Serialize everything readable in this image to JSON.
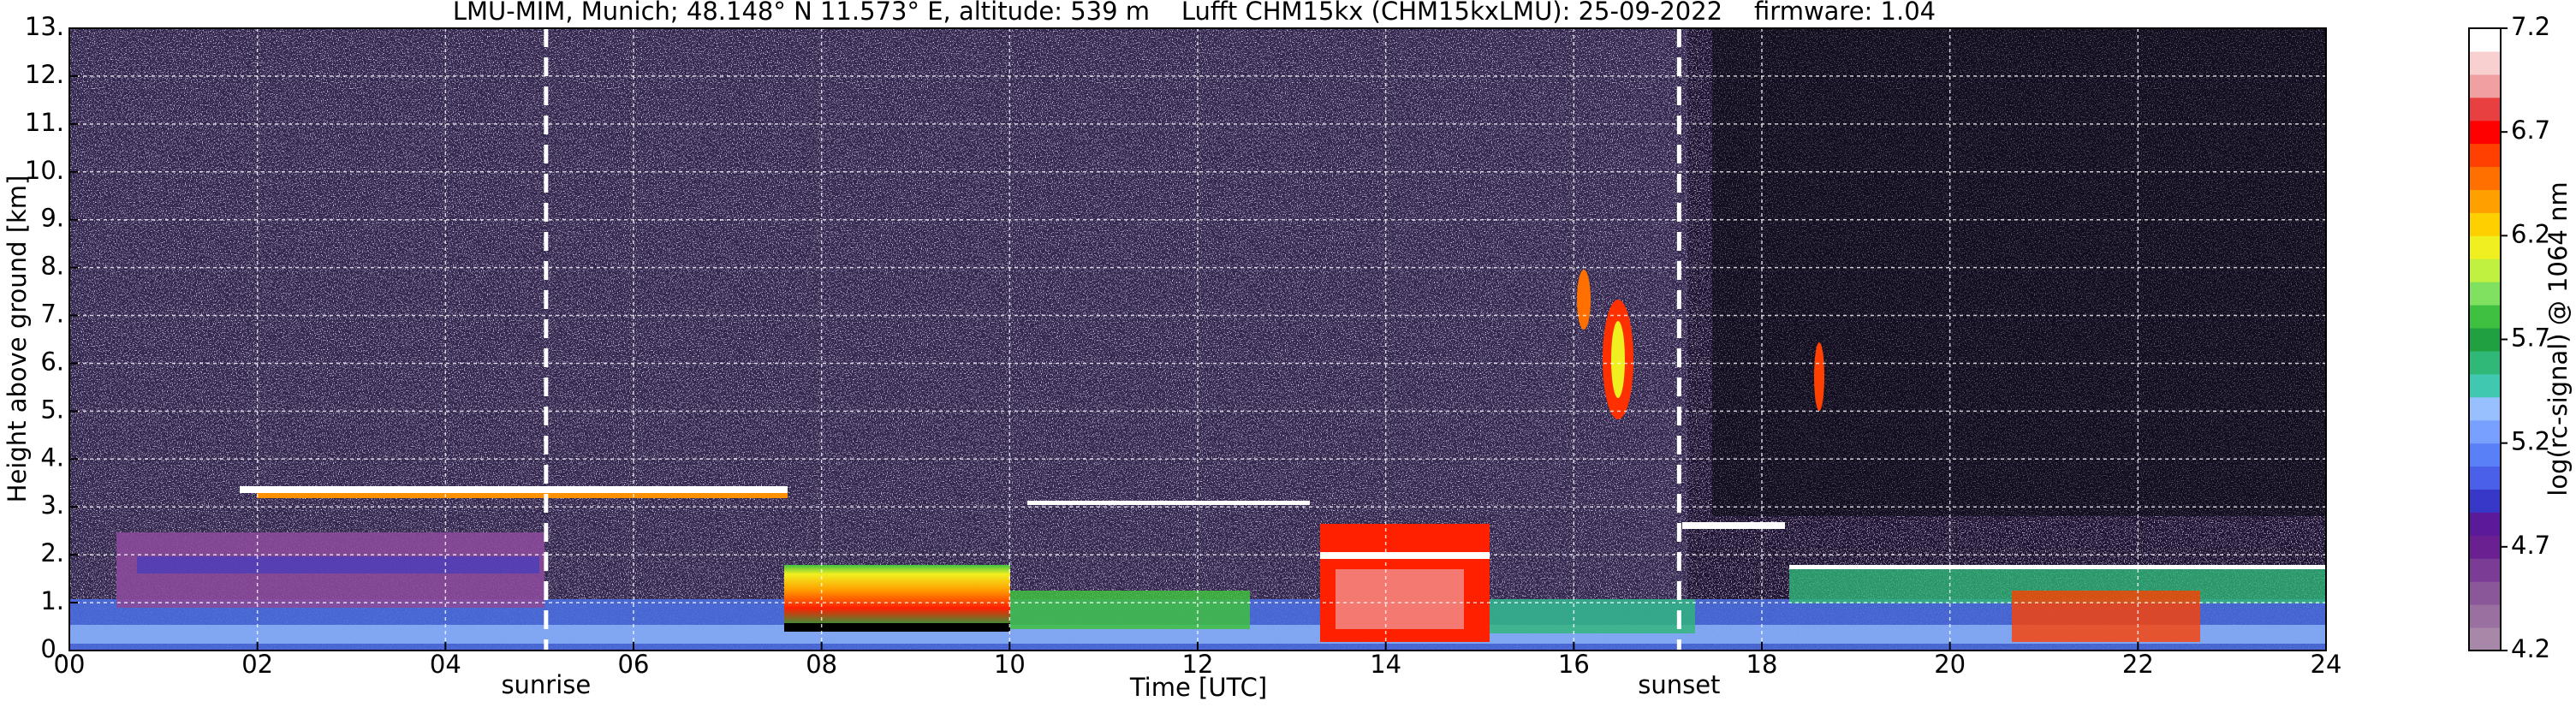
{
  "chart_data": {
    "type": "heatmap",
    "title": "LMU-MIM, Munich; 48.148° N 11.573° E, altitude: 539 m    Lufft CHM15kx (CHM15kxLMU): 25-09-2022    firmware: 1.04",
    "xlabel": "Time [UTC]",
    "ylabel": "Height above ground [km]",
    "colorbar_label": "log(rc-signal) @ 1064 nm",
    "xlim": [
      0,
      24
    ],
    "xticks": [
      {
        "value": 0,
        "label": "00"
      },
      {
        "value": 2,
        "label": "02"
      },
      {
        "value": 4,
        "label": "04"
      },
      {
        "value": 6,
        "label": "06"
      },
      {
        "value": 8,
        "label": "08"
      },
      10,
      12,
      14,
      16,
      18,
      20,
      22,
      24
    ],
    "ylim": [
      0,
      13
    ],
    "yticks": [
      {
        "value": 0,
        "label": "0."
      },
      {
        "value": 1,
        "label": "1."
      },
      {
        "value": 2,
        "label": "2."
      },
      {
        "value": 3,
        "label": "3."
      },
      {
        "value": 4,
        "label": "4."
      },
      {
        "value": 5,
        "label": "5."
      },
      {
        "value": 6,
        "label": "6."
      },
      {
        "value": 7,
        "label": "7."
      },
      {
        "value": 8,
        "label": "8."
      },
      {
        "value": 9,
        "label": "9."
      },
      {
        "value": 10,
        "label": "10."
      },
      {
        "value": 11,
        "label": "11."
      },
      {
        "value": 12,
        "label": "12."
      },
      {
        "value": 13,
        "label": "13."
      }
    ],
    "clim": [
      4.2,
      7.2
    ],
    "cticks": [
      4.2,
      4.7,
      5.2,
      5.7,
      6.2,
      6.7,
      7.2
    ],
    "colors": [
      "#a888a8",
      "#9a70a0",
      "#8a5898",
      "#7a3c94",
      "#6a2090",
      "#5a1a9a",
      "#3838c8",
      "#4a60e8",
      "#5a80f8",
      "#78a0ff",
      "#98c0ff",
      "#40c8b0",
      "#30b878",
      "#20a040",
      "#40c040",
      "#80e060",
      "#c0f040",
      "#f0f020",
      "#ffd000",
      "#ffa000",
      "#ff7000",
      "#ff4000",
      "#ff0000",
      "#e84040",
      "#f0a0a0",
      "#f8d0d0",
      "#ffffff"
    ],
    "grid": true,
    "annotations": [
      {
        "x": 5.07,
        "text": "sunrise"
      },
      {
        "x": 17.12,
        "text": "sunset"
      }
    ]
  }
}
